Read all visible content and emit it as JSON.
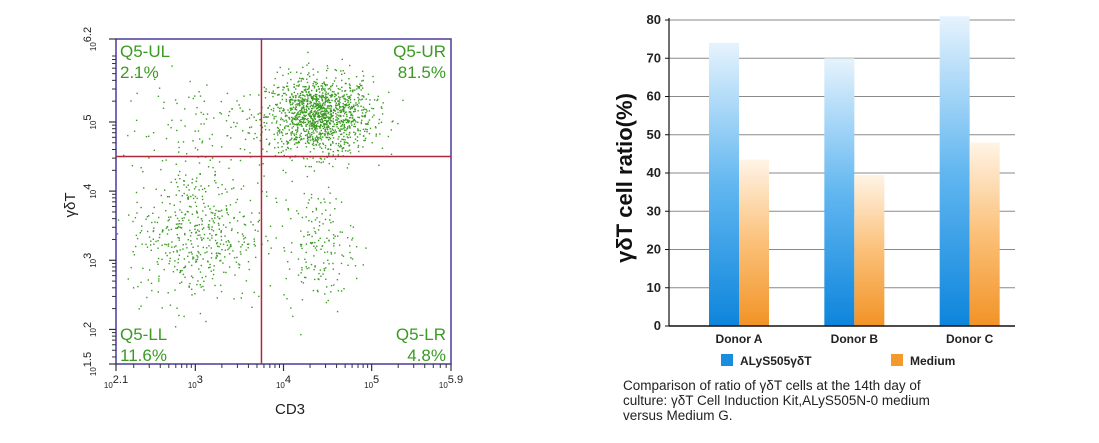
{
  "chart_data": [
    {
      "type": "scatter",
      "subtype": "flow-cytometry-quadrant",
      "xlabel": "CD3",
      "ylabel": "γδT",
      "axis_scale": "log10",
      "xlim": [
        2.1,
        5.9
      ],
      "ylim": [
        1.5,
        6.2
      ],
      "x_tick_labels": [
        "10^2.1",
        "10^3",
        "10^4",
        "10^5",
        "10^5.9"
      ],
      "y_tick_labels": [
        "10^1.5",
        "10^2",
        "10^3",
        "10^4",
        "10^5",
        "10^6.2"
      ],
      "quadrant_gate": {
        "x": 3.75,
        "y": 4.5
      },
      "gate_color": "#b0283a",
      "dot_color": "#3a9a22",
      "quadrants": [
        {
          "name": "Q5-UL",
          "percent": "2.1%"
        },
        {
          "name": "Q5-UR",
          "percent": "81.5%"
        },
        {
          "name": "Q5-LL",
          "percent": "11.6%"
        },
        {
          "name": "Q5-LR",
          "percent": "4.8%"
        }
      ],
      "populations": [
        {
          "name": "UR main cluster",
          "center": [
            4.4,
            5.1
          ],
          "spread": [
            0.3,
            0.28
          ],
          "density": "very high"
        },
        {
          "name": "LL cluster",
          "center": [
            3.0,
            3.4
          ],
          "spread": [
            0.38,
            0.5
          ],
          "density": "medium"
        },
        {
          "name": "LR cluster",
          "center": [
            4.4,
            3.2
          ],
          "spread": [
            0.2,
            0.42
          ],
          "density": "low"
        },
        {
          "name": "UL scatter",
          "center": [
            3.0,
            4.9
          ],
          "spread": [
            0.45,
            0.4
          ],
          "density": "sparse"
        }
      ]
    },
    {
      "type": "bar",
      "categories": [
        "Donor A",
        "Donor B",
        "Donor C"
      ],
      "series": [
        {
          "name": "ALyS505γδT",
          "values": [
            74,
            70,
            81
          ],
          "color": "#1a8de0"
        },
        {
          "name": "Medium",
          "values": [
            43.5,
            39.5,
            48
          ],
          "color": "#f39a2c"
        }
      ],
      "ylabel": "γδT cell ratio(%)",
      "ylim": [
        0,
        80
      ],
      "yticks": [
        0,
        10,
        20,
        30,
        40,
        50,
        60,
        70,
        80
      ],
      "grid": true,
      "legend_position": "bottom"
    }
  ],
  "caption": [
    "Comparison of ratio of γδT cells at the 14th day of",
    "culture: γδT Cell Induction Kit,ALyS505N-0 medium",
    "versus Medium G."
  ]
}
